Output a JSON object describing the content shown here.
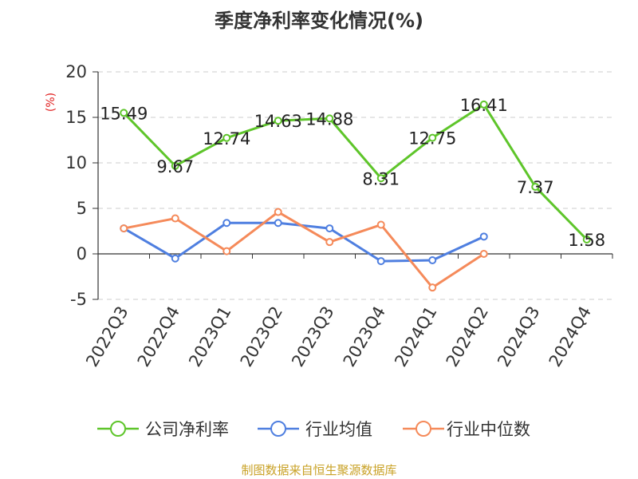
{
  "chart_data": {
    "type": "line",
    "title": "季度净利率变化情况(%)",
    "ylabel": "(%)",
    "ylim": [
      -5,
      20
    ],
    "yticks": [
      20,
      15,
      10,
      5,
      0,
      -5
    ],
    "grid": true,
    "legend_position": "bottom",
    "categories": [
      "2022Q3",
      "2022Q4",
      "2023Q1",
      "2023Q2",
      "2023Q3",
      "2023Q4",
      "2024Q1",
      "2024Q2",
      "2024Q3",
      "2024Q4"
    ],
    "series": [
      {
        "name": "公司净利率",
        "color": "#5ec52a",
        "values": [
          15.49,
          9.67,
          12.74,
          14.63,
          14.88,
          8.31,
          12.75,
          16.41,
          7.37,
          1.58
        ],
        "data_labels": [
          "15.49",
          "9.67",
          "12.74",
          "14.63",
          "14.88",
          "8.31",
          "12.75",
          "16.41",
          "7.37",
          "1.58"
        ]
      },
      {
        "name": "行业均值",
        "color": "#4f7fe0",
        "values": [
          2.8,
          -0.5,
          3.4,
          3.4,
          2.8,
          -0.8,
          -0.7,
          1.9,
          null,
          null
        ]
      },
      {
        "name": "行业中位数",
        "color": "#f58a5a",
        "values": [
          2.8,
          3.9,
          0.3,
          4.6,
          1.3,
          3.2,
          -3.7,
          0.0,
          null,
          null
        ]
      }
    ]
  },
  "footer": {
    "source_text": "制图数据来自恒生聚源数据库",
    "source_color": "#c9a227"
  }
}
